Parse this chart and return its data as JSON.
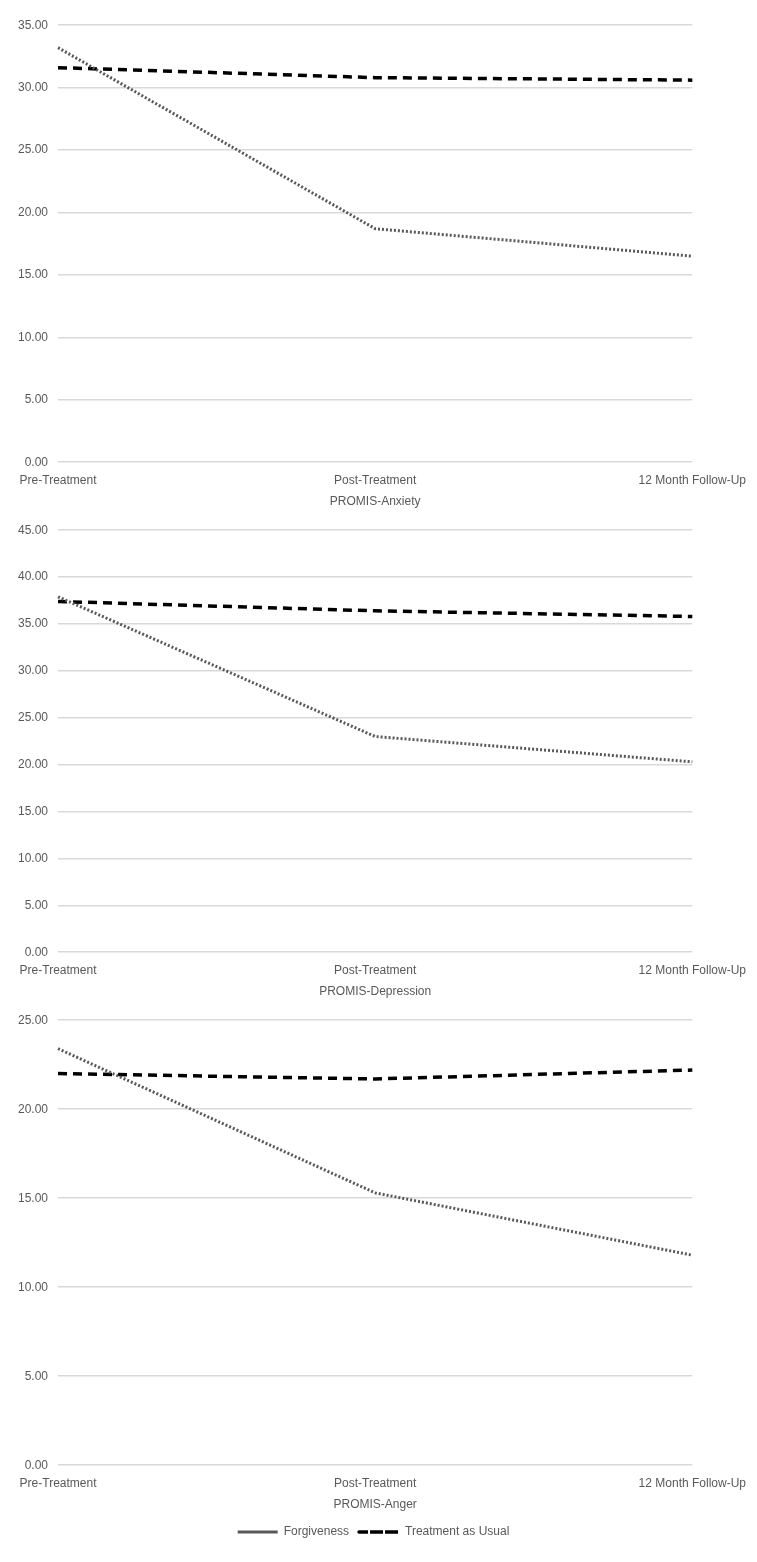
{
  "chart_data": [
    {
      "type": "line",
      "xlabel": "PROMIS-Anxiety",
      "categories": [
        "Pre-Treatment",
        "Post-Treatment",
        "12 Month Follow-Up"
      ],
      "ylim": [
        0,
        35
      ],
      "yticks": [
        {
          "value": 0,
          "label": "0.00"
        },
        {
          "value": 5,
          "label": "5.00"
        },
        {
          "value": 10,
          "label": "10.00"
        },
        {
          "value": 15,
          "label": "15.00"
        },
        {
          "value": 20,
          "label": "20.00"
        },
        {
          "value": 25,
          "label": "25.00"
        },
        {
          "value": 30,
          "label": "30.00"
        },
        {
          "value": 35,
          "label": "35.00"
        }
      ],
      "grid": "y",
      "legend": false,
      "marker": "none",
      "series": [
        {
          "color": "#595959",
          "line_style": "dotted",
          "values": [
            33.2,
            18.7,
            16.5
          ]
        },
        {
          "color": "#000000",
          "line_style": "dashed",
          "values": [
            31.6,
            30.8,
            30.6
          ]
        }
      ]
    },
    {
      "type": "line",
      "xlabel": "PROMIS-Depression",
      "categories": [
        "Pre-Treatment",
        "Post-Treatment",
        "12 Month Follow-Up"
      ],
      "ylim": [
        0,
        45
      ],
      "yticks": [
        {
          "value": 0,
          "label": "0.00"
        },
        {
          "value": 5,
          "label": "5.00"
        },
        {
          "value": 10,
          "label": "10.00"
        },
        {
          "value": 15,
          "label": "15.00"
        },
        {
          "value": 20,
          "label": "20.00"
        },
        {
          "value": 25,
          "label": "25.00"
        },
        {
          "value": 30,
          "label": "30.00"
        },
        {
          "value": 35,
          "label": "35.00"
        },
        {
          "value": 40,
          "label": "40.00"
        },
        {
          "value": 45,
          "label": "45.00"
        }
      ],
      "grid": "y",
      "legend": false,
      "marker": "none",
      "series": [
        {
          "color": "#595959",
          "line_style": "dotted",
          "values": [
            37.9,
            23.0,
            20.3
          ]
        },
        {
          "color": "#000000",
          "line_style": "dashed",
          "values": [
            37.4,
            36.4,
            35.8
          ]
        }
      ]
    },
    {
      "type": "line",
      "xlabel": "PROMIS-Anger",
      "categories": [
        "Pre-Treatment",
        "Post-Treatment",
        "12 Month Follow-Up"
      ],
      "ylim": [
        0,
        25
      ],
      "yticks": [
        {
          "value": 0,
          "label": "0.00"
        },
        {
          "value": 5,
          "label": "5.00"
        },
        {
          "value": 10,
          "label": "10.00"
        },
        {
          "value": 15,
          "label": "15.00"
        },
        {
          "value": 20,
          "label": "20.00"
        },
        {
          "value": 25,
          "label": "25.00"
        }
      ],
      "grid": "y",
      "legend": "bottom",
      "marker": "none",
      "series": [
        {
          "name": "Forgiveness",
          "color": "#595959",
          "line_style": "dotted",
          "values": [
            23.4,
            15.3,
            11.8
          ]
        },
        {
          "name": "Treatment as Usual",
          "color": "#000000",
          "line_style": "dashed",
          "values": [
            22.0,
            21.7,
            22.2
          ]
        }
      ]
    }
  ]
}
